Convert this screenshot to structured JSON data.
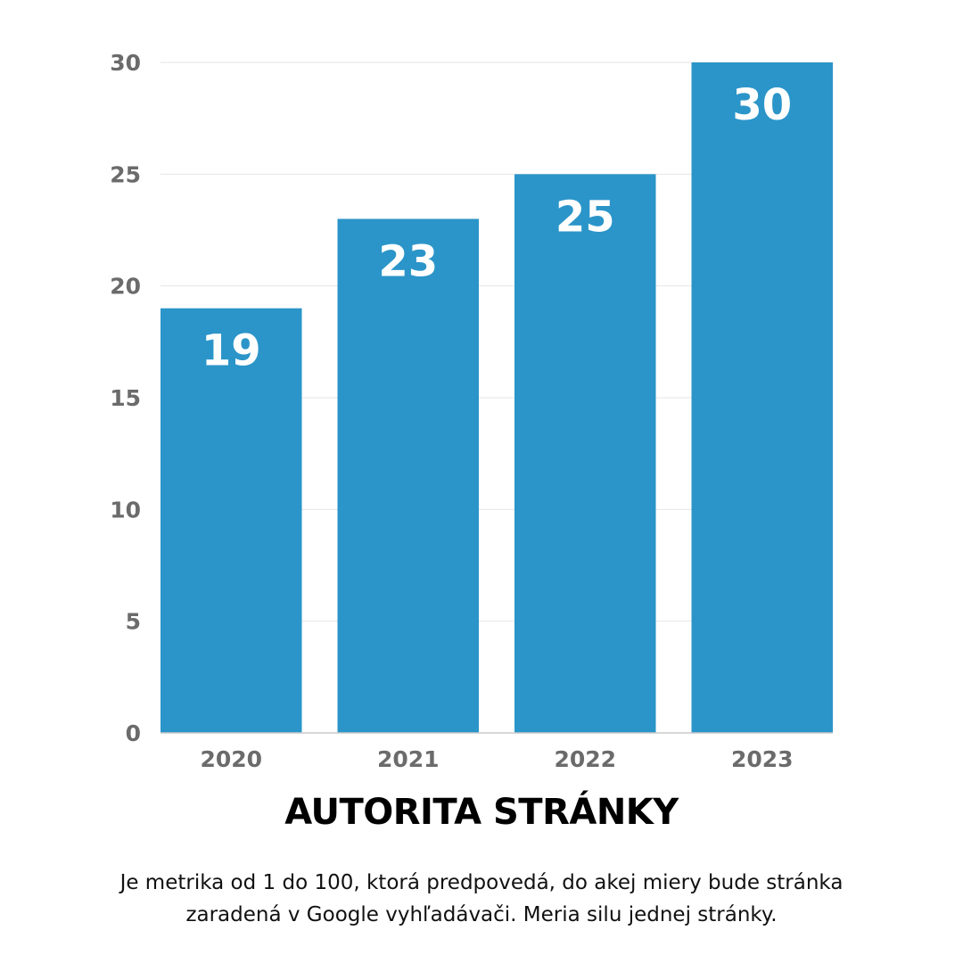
{
  "chart_data": {
    "type": "bar",
    "categories": [
      "2020",
      "2021",
      "2022",
      "2023"
    ],
    "values": [
      19,
      23,
      25,
      30
    ],
    "data_labels": [
      "19",
      "23",
      "25",
      "30"
    ],
    "title": "AUTORITA STRÁNKY",
    "xlabel": "",
    "ylabel": "",
    "ylim": [
      0,
      30
    ],
    "yticks": [
      0,
      5,
      10,
      15,
      20,
      25,
      30
    ],
    "ytick_labels": [
      "0",
      "5",
      "10",
      "15",
      "20",
      "25",
      "30"
    ],
    "grid": true,
    "legend": "none",
    "colors": {
      "bar": "#2b95c9",
      "grid": "#e6e6e6",
      "axis": "#cccccc",
      "tick_text": "#6b6b6b",
      "data_label": "#ffffff"
    }
  },
  "caption": "Je metrika od 1 do 100, ktorá predpovedá, do akej miery bude stránka zaradená v Google vyhľadávači. Meria silu jednej stránky."
}
